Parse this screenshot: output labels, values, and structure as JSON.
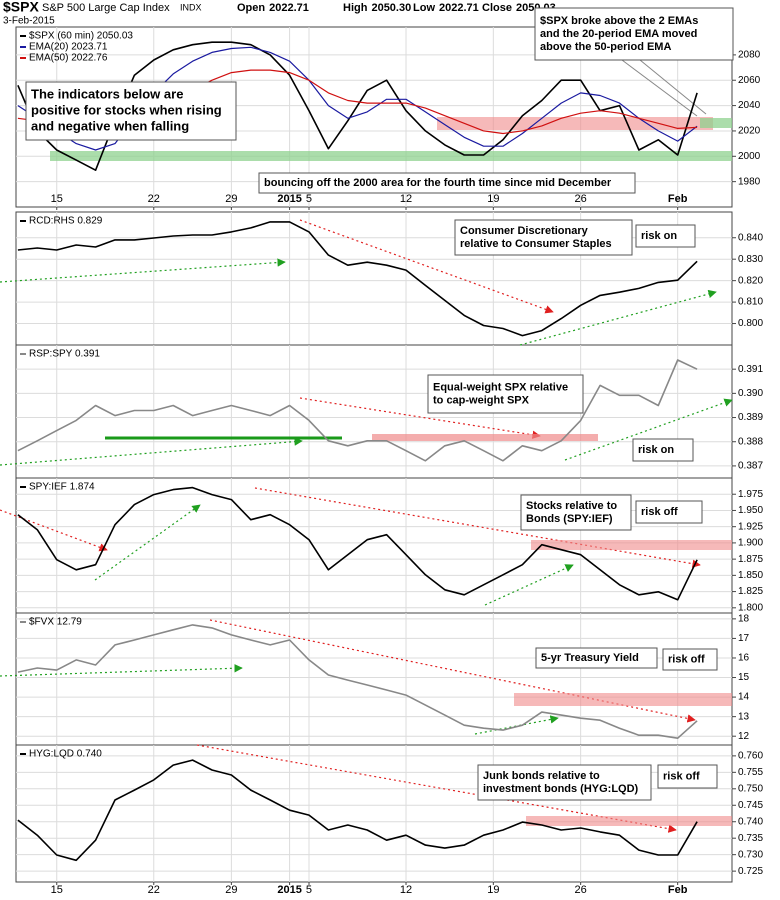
{
  "chart_data": [
    {
      "type": "line",
      "title": "$SPX",
      "subtitle": "S&P 500 Large Cap Index",
      "exchange": "INDX",
      "date": "3-Feb-2015",
      "quote": [
        [
          "Open",
          "2022.71"
        ],
        [
          "High",
          "2050.30"
        ],
        [
          "Low",
          "2022.71"
        ],
        [
          "Close",
          "2050.03"
        ]
      ],
      "x": [
        -2,
        -1,
        0,
        1,
        2,
        3,
        4,
        5,
        6,
        7,
        8,
        9,
        10,
        11,
        12,
        13,
        14,
        15,
        16,
        17,
        18,
        19,
        20,
        21,
        22,
        23,
        24,
        25,
        26,
        27,
        28,
        29,
        30,
        31,
        32,
        33
      ],
      "xlim": [
        -2.1,
        34.8
      ],
      "xticks": [
        {
          "value": 0,
          "label": "15"
        },
        {
          "value": 5,
          "label": "22"
        },
        {
          "value": 9,
          "label": "29"
        },
        {
          "value": 12,
          "label": "2015"
        },
        {
          "value": 13,
          "label": "5"
        },
        {
          "value": 18,
          "label": "12"
        },
        {
          "value": 22.5,
          "label": "19"
        },
        {
          "value": 27,
          "label": "26"
        },
        {
          "value": 32,
          "label": "Feb"
        }
      ],
      "ylim": [
        1960,
        2102
      ],
      "yticks": [
        1980,
        2000,
        2020,
        2040,
        2060,
        2080
      ],
      "grid": true,
      "legend": "top-left",
      "series": [
        {
          "name": "$SPX (60 min) 2050.03",
          "color": "#000000",
          "values": [
            2056,
            2020,
            2005,
            1997,
            1989,
            2028,
            2064,
            2076,
            2084,
            2088,
            2090,
            2090,
            2088,
            2080,
            2064,
            2036,
            2006,
            2028,
            2052,
            2060,
            2036,
            2020,
            2009,
            2001,
            2001,
            2013,
            2032,
            2044,
            2060,
            2060,
            2036,
            2040,
            2005,
            2013,
            2001,
            2050.03
          ]
        },
        {
          "name": "EMA(20) 2023.71",
          "color": "#1a1aa0",
          "values": [
            2040,
            2030,
            2020,
            2010,
            2005,
            2010,
            2030,
            2050,
            2065,
            2075,
            2082,
            2085,
            2086,
            2082,
            2075,
            2060,
            2040,
            2030,
            2035,
            2045,
            2045,
            2035,
            2025,
            2015,
            2008,
            2008,
            2018,
            2030,
            2042,
            2050,
            2048,
            2042,
            2030,
            2020,
            2012,
            2023.71
          ]
        },
        {
          "name": "EMA(50) 2022.76",
          "color": "#d01010",
          "values": [
            2030,
            2028,
            2024,
            2018,
            2014,
            2014,
            2020,
            2030,
            2042,
            2052,
            2060,
            2066,
            2068,
            2068,
            2066,
            2060,
            2050,
            2044,
            2042,
            2042,
            2042,
            2038,
            2032,
            2026,
            2020,
            2018,
            2020,
            2024,
            2030,
            2034,
            2036,
            2034,
            2030,
            2026,
            2022,
            2022.76
          ]
        }
      ],
      "annotations": [
        {
          "lines": [
            "The indicators below are",
            "positive for stocks when rising",
            "and negative when falling"
          ],
          "color": "#000000"
        },
        {
          "lines": [
            "$SPX broke above the 2 EMAs",
            "and the 20-period EMA moved",
            "above the 50-period EMA"
          ],
          "color": "#0000cc"
        },
        {
          "lines": [
            "bouncing off the 2000 area for the fourth time since mid December"
          ],
          "color": "#118811"
        }
      ]
    },
    {
      "type": "line",
      "x": [
        -2,
        -1,
        0,
        1,
        2,
        3,
        4,
        5,
        6,
        7,
        8,
        9,
        10,
        11,
        12,
        13,
        14,
        15,
        16,
        17,
        18,
        19,
        20,
        21,
        22,
        23,
        24,
        25,
        26,
        27,
        28,
        29,
        30,
        31,
        32,
        33
      ],
      "xlim": [
        -2.1,
        34.8
      ],
      "ylim": [
        0.79,
        0.852
      ],
      "yticks": [
        {
          "value": 0.8,
          "label": "0.800"
        },
        {
          "value": 0.81,
          "label": "0.810"
        },
        {
          "value": 0.82,
          "label": "0.820"
        },
        {
          "value": 0.83,
          "label": "0.830"
        },
        {
          "value": 0.84,
          "label": "0.840"
        }
      ],
      "grid": true,
      "legend": "top-left",
      "series": [
        {
          "name": "RCD:RHS 0.829",
          "color": "#000000",
          "values": [
            0.8343,
            0.8352,
            0.8343,
            0.8366,
            0.8357,
            0.839,
            0.839,
            0.8399,
            0.8408,
            0.8413,
            0.8413,
            0.8427,
            0.8446,
            0.8474,
            0.8474,
            0.8427,
            0.8319,
            0.8272,
            0.8286,
            0.8272,
            0.8249,
            0.8178,
            0.8108,
            0.8038,
            0.7991,
            0.7977,
            0.7944,
            0.7967,
            0.8023,
            0.8085,
            0.8131,
            0.8146,
            0.8164,
            0.8192,
            0.8202,
            0.829
          ]
        }
      ],
      "annotations": [
        {
          "lines": [
            "Consumer Discretionary",
            "relative to Consumer Staples"
          ],
          "color": "#000000"
        },
        {
          "lines": [
            "risk on"
          ],
          "color": "#118811"
        }
      ]
    },
    {
      "type": "line",
      "x": [
        -2,
        -1,
        0,
        1,
        2,
        3,
        4,
        5,
        6,
        7,
        8,
        9,
        10,
        11,
        12,
        13,
        14,
        15,
        16,
        17,
        18,
        19,
        20,
        21,
        22,
        23,
        24,
        25,
        26,
        27,
        28,
        29,
        30,
        31,
        32,
        33
      ],
      "xlim": [
        -2.1,
        34.8
      ],
      "ylim": [
        0.3865,
        0.392
      ],
      "yticks": [
        0.387,
        0.388,
        0.389,
        {
          "value": 0.39,
          "label": "0.390"
        },
        0.391
      ],
      "grid": true,
      "legend": "top-left",
      "series": [
        {
          "name": "RSP:SPY 0.391",
          "color": "#888888",
          "values": [
            0.38763,
            0.38804,
            0.38846,
            0.38888,
            0.3895,
            0.38908,
            0.38929,
            0.38929,
            0.3895,
            0.38908,
            0.38929,
            0.3895,
            0.38929,
            0.38908,
            0.3895,
            0.38888,
            0.38804,
            0.38783,
            0.38804,
            0.38804,
            0.38763,
            0.38721,
            0.38783,
            0.38804,
            0.38763,
            0.38721,
            0.38783,
            0.38763,
            0.38804,
            0.38888,
            0.39033,
            0.38992,
            0.38992,
            0.3895,
            0.39138,
            0.391
          ]
        }
      ],
      "annotations": [
        {
          "lines": [
            "Equal-weight SPX relative",
            "to cap-weight SPX"
          ],
          "color": "#777777"
        },
        {
          "lines": [
            "risk on"
          ],
          "color": "#118811"
        }
      ]
    },
    {
      "type": "line",
      "x": [
        -2,
        -1,
        0,
        1,
        2,
        3,
        4,
        5,
        6,
        7,
        8,
        9,
        10,
        11,
        12,
        13,
        14,
        15,
        16,
        17,
        18,
        19,
        20,
        21,
        22,
        23,
        24,
        25,
        26,
        27,
        28,
        29,
        30,
        31,
        32,
        33
      ],
      "xlim": [
        -2.1,
        34.8
      ],
      "ylim": [
        1.792,
        2.0
      ],
      "yticks": [
        {
          "value": 1.8,
          "label": "1.800"
        },
        1.825,
        {
          "value": 1.85,
          "label": "1.850"
        },
        1.875,
        {
          "value": 1.9,
          "label": "1.900"
        },
        1.925,
        {
          "value": 1.95,
          "label": "1.950"
        },
        1.975
      ],
      "grid": true,
      "legend": "top-left",
      "series": [
        {
          "name": "SPY:IEF 1.874",
          "color": "#000000",
          "values": [
            1.9435,
            1.9204,
            1.8741,
            1.8586,
            1.8664,
            1.9281,
            1.959,
            1.9744,
            1.9821,
            1.9852,
            1.9744,
            1.9667,
            1.9358,
            1.9435,
            1.9281,
            1.9049,
            1.8586,
            1.8818,
            1.9049,
            1.9127,
            1.8818,
            1.8509,
            1.8278,
            1.8201,
            1.8355,
            1.8509,
            1.8664,
            1.8972,
            1.8895,
            1.8818,
            1.8586,
            1.8355,
            1.8201,
            1.8247,
            1.8123,
            1.874
          ]
        }
      ],
      "annotations": [
        {
          "lines": [
            "Stocks relative to",
            "Bonds (SPY:IEF)"
          ],
          "color": "#000000"
        },
        {
          "lines": [
            "risk off"
          ],
          "color": "#dd0000"
        }
      ]
    },
    {
      "type": "line",
      "x": [
        -2,
        -1,
        0,
        1,
        2,
        3,
        4,
        5,
        6,
        7,
        8,
        9,
        10,
        11,
        12,
        13,
        14,
        15,
        16,
        17,
        18,
        19,
        20,
        21,
        22,
        23,
        24,
        25,
        26,
        27,
        28,
        29,
        30,
        31,
        32,
        33
      ],
      "xlim": [
        -2.1,
        34.8
      ],
      "ylim": [
        11.55,
        18.3
      ],
      "yticks": [
        12,
        13,
        14,
        15,
        16,
        17,
        18
      ],
      "grid": true,
      "legend": "top-left",
      "series": [
        {
          "name": "$FVX 12.79",
          "color": "#888888",
          "values": [
            15.28,
            15.49,
            15.38,
            15.9,
            15.64,
            16.67,
            16.92,
            17.18,
            17.44,
            17.69,
            17.54,
            17.18,
            16.92,
            16.67,
            16.92,
            15.9,
            15.13,
            14.87,
            14.62,
            14.36,
            14.1,
            13.59,
            13.08,
            12.56,
            12.41,
            12.31,
            12.56,
            13.23,
            13.08,
            12.92,
            12.82,
            12.41,
            12.05,
            12.05,
            11.9,
            12.79
          ]
        }
      ],
      "annotations": [
        {
          "lines": [
            "5-yr Treasury Yield"
          ],
          "color": "#777777"
        },
        {
          "lines": [
            "risk off"
          ],
          "color": "#dd0000"
        }
      ]
    },
    {
      "type": "line",
      "x": [
        -2,
        -1,
        0,
        1,
        2,
        3,
        4,
        5,
        6,
        7,
        8,
        9,
        10,
        11,
        12,
        13,
        14,
        15,
        16,
        17,
        18,
        19,
        20,
        21,
        22,
        23,
        24,
        25,
        26,
        27,
        28,
        29,
        30,
        31,
        32,
        33
      ],
      "xlim": [
        -2.1,
        34.8
      ],
      "xticks": [
        {
          "value": 0,
          "label": "15"
        },
        {
          "value": 5,
          "label": "22"
        },
        {
          "value": 9,
          "label": "29"
        },
        {
          "value": 12,
          "label": "2015"
        },
        {
          "value": 13,
          "label": "5"
        },
        {
          "value": 18,
          "label": "12"
        },
        {
          "value": 22.5,
          "label": "19"
        },
        {
          "value": 27,
          "label": "26"
        },
        {
          "value": 32,
          "label": "Feb"
        }
      ],
      "ylim": [
        0.7217,
        0.7633
      ],
      "yticks": [
        0.725,
        {
          "value": 0.73,
          "label": "0.730"
        },
        0.735,
        {
          "value": 0.74,
          "label": "0.740"
        },
        0.745,
        {
          "value": 0.75,
          "label": "0.750"
        },
        0.755,
        {
          "value": 0.76,
          "label": "0.760"
        }
      ],
      "grid": true,
      "legend": "top-left",
      "series": [
        {
          "name": "HYG:LQD 0.740",
          "color": "#000000",
          "values": [
            0.7405,
            0.7359,
            0.7299,
            0.7283,
            0.7344,
            0.7466,
            0.7496,
            0.7527,
            0.7572,
            0.7587,
            0.7557,
            0.7542,
            0.7496,
            0.7466,
            0.7435,
            0.742,
            0.7375,
            0.739,
            0.7375,
            0.7344,
            0.7359,
            0.7329,
            0.732,
            0.7329,
            0.7359,
            0.7375,
            0.7399,
            0.739,
            0.7375,
            0.7381,
            0.7369,
            0.7359,
            0.7314,
            0.7299,
            0.7299,
            0.74
          ]
        }
      ],
      "annotations": [
        {
          "lines": [
            "Junk bonds relative to",
            "investment bonds (HYG:LQD)"
          ],
          "color": "#000000"
        },
        {
          "lines": [
            "risk off"
          ],
          "color": "#dd0000"
        }
      ]
    }
  ]
}
